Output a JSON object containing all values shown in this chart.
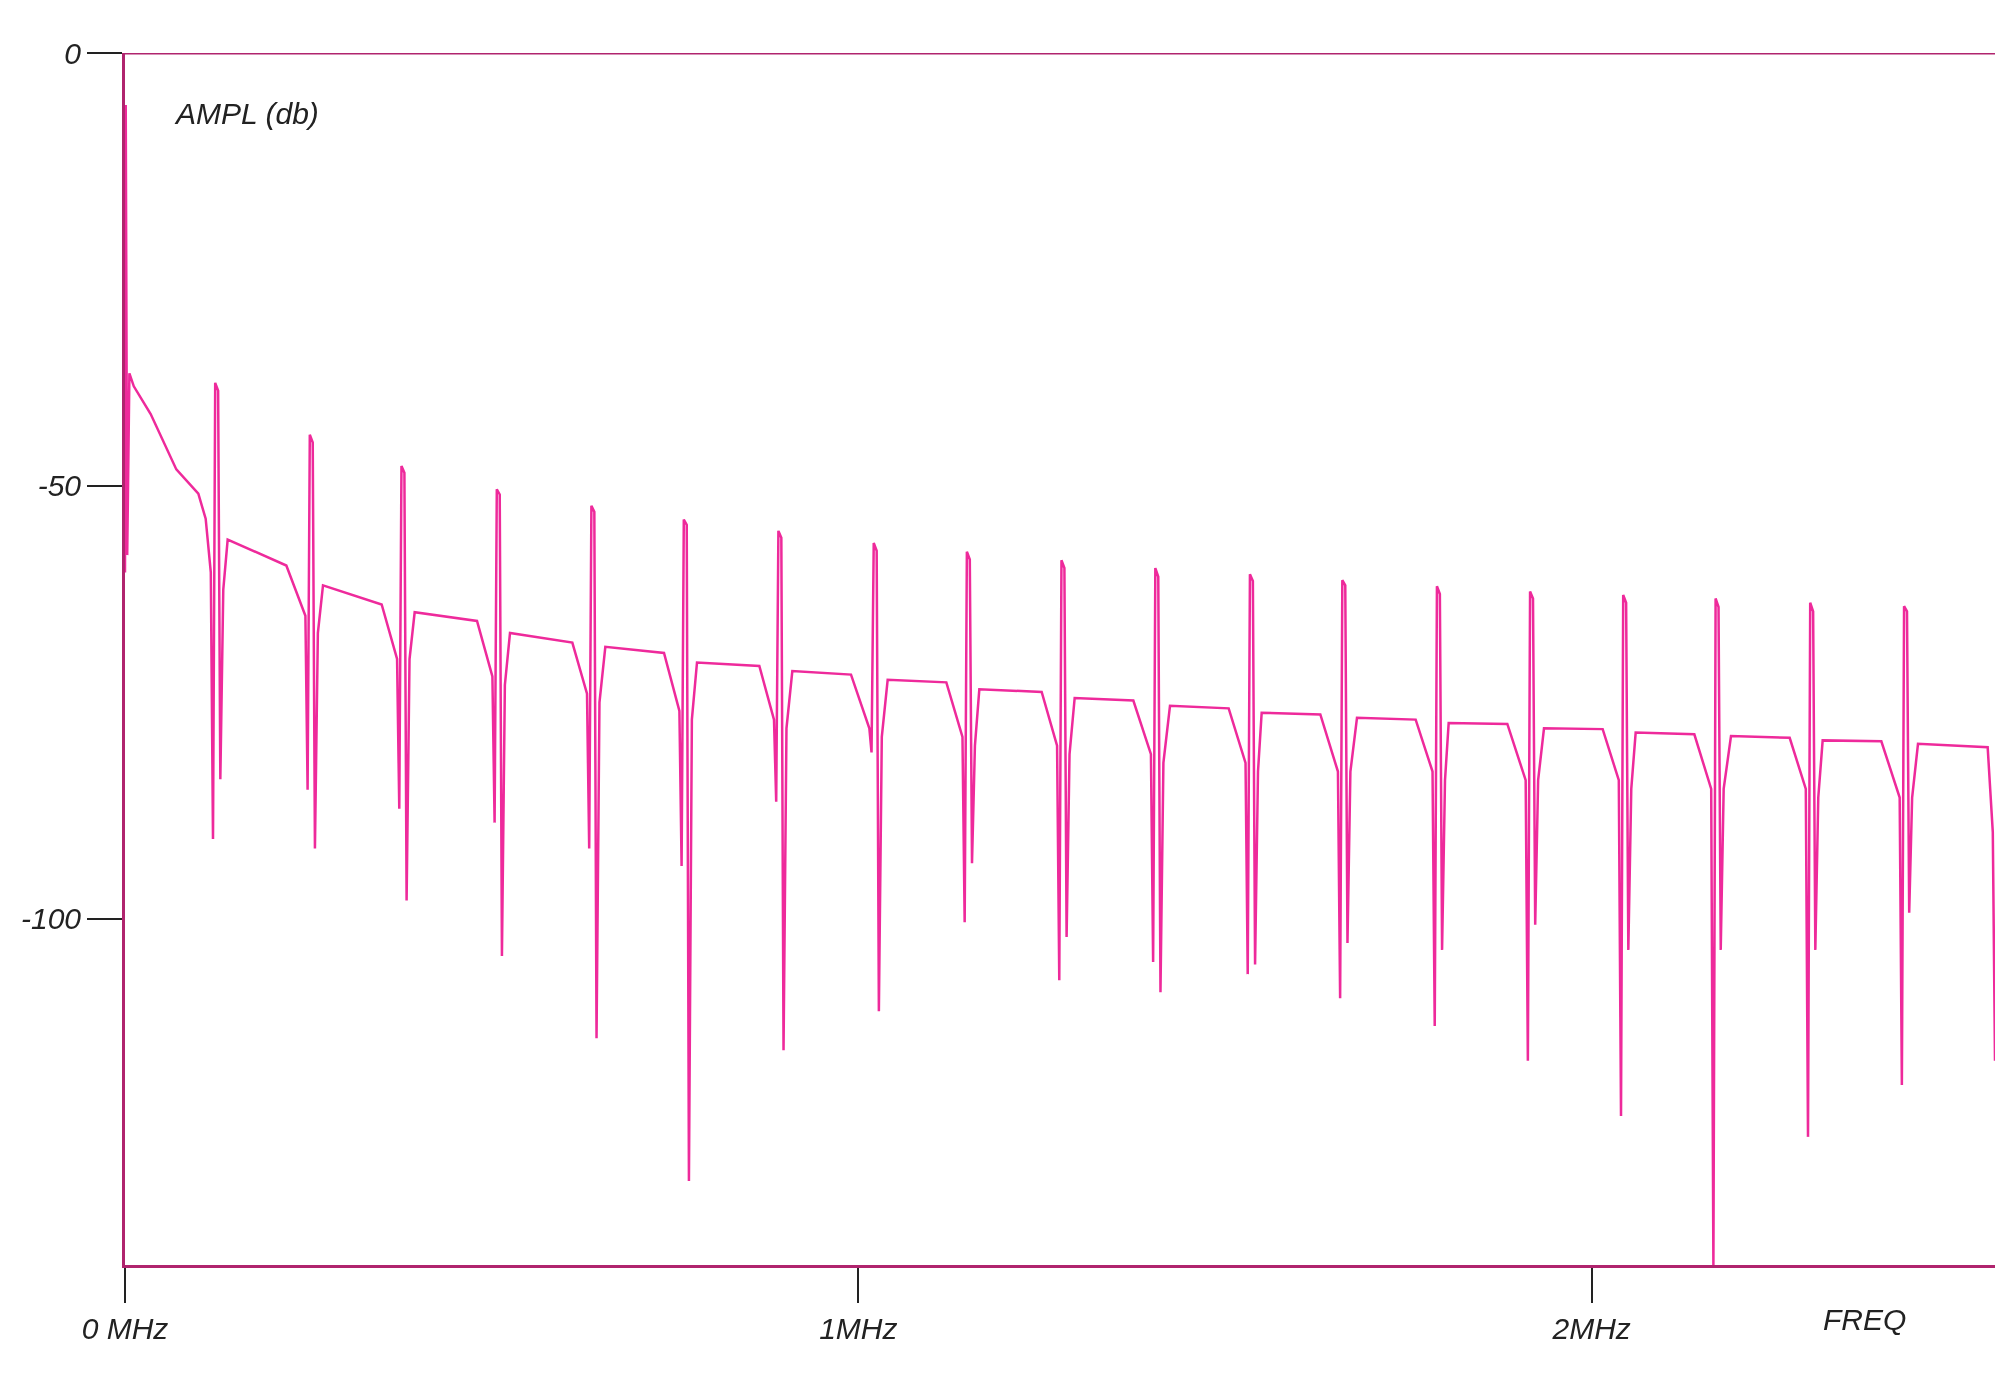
{
  "chart_data": {
    "type": "line",
    "xlabel": "FREQ",
    "ylabel": "AMPL (db)",
    "xlim": [
      0,
      2.55
    ],
    "xticks": [
      {
        "value": 0,
        "label": "0 MHz"
      },
      {
        "value": 1,
        "label": "1MHz"
      },
      {
        "value": 2,
        "label": "2MHz"
      }
    ],
    "ylim": [
      -140,
      0
    ],
    "yticks": [
      0,
      -50,
      -100
    ],
    "grid": false,
    "line_style": "solid",
    "series": [
      {
        "color": "#ee2a9b",
        "x": [
          0,
          0.001,
          0.003,
          0.006,
          0.012,
          0.035,
          0.07,
          0.1,
          0.11,
          0.117,
          0.12,
          0.123,
          0.127,
          0.13,
          0.134,
          0.14,
          0.22,
          0.246,
          0.249,
          0.252,
          0.256,
          0.259,
          0.263,
          0.27,
          0.35,
          0.371,
          0.374,
          0.377,
          0.381,
          0.384,
          0.388,
          0.395,
          0.48,
          0.501,
          0.504,
          0.507,
          0.511,
          0.514,
          0.518,
          0.525,
          0.61,
          0.63,
          0.633,
          0.636,
          0.64,
          0.643,
          0.647,
          0.655,
          0.735,
          0.756,
          0.759,
          0.762,
          0.766,
          0.769,
          0.773,
          0.78,
          0.865,
          0.885,
          0.888,
          0.891,
          0.895,
          0.898,
          0.902,
          0.91,
          0.99,
          1.015,
          1.018,
          1.021,
          1.025,
          1.028,
          1.032,
          1.04,
          1.12,
          1.142,
          1.145,
          1.148,
          1.152,
          1.155,
          1.159,
          1.165,
          1.25,
          1.271,
          1.274,
          1.277,
          1.281,
          1.284,
          1.288,
          1.295,
          1.375,
          1.399,
          1.402,
          1.405,
          1.409,
          1.412,
          1.416,
          1.425,
          1.505,
          1.528,
          1.531,
          1.534,
          1.538,
          1.541,
          1.545,
          1.55,
          1.63,
          1.654,
          1.657,
          1.66,
          1.664,
          1.667,
          1.671,
          1.68,
          1.76,
          1.783,
          1.786,
          1.789,
          1.793,
          1.796,
          1.8,
          1.805,
          1.885,
          1.91,
          1.913,
          1.916,
          1.92,
          1.923,
          1.927,
          1.935,
          2.015,
          2.037,
          2.04,
          2.043,
          2.047,
          2.05,
          2.054,
          2.06,
          2.14,
          2.163,
          2.166,
          2.169,
          2.173,
          2.176,
          2.18,
          2.19,
          2.27,
          2.292,
          2.295,
          2.298,
          2.302,
          2.305,
          2.309,
          2.315,
          2.395,
          2.42,
          2.423,
          2.426,
          2.43,
          2.433,
          2.437,
          2.445,
          2.54,
          2.547,
          2.55
        ],
        "values": [
          -60,
          -6,
          -58,
          -37,
          -38.5,
          -41.7,
          -48.1,
          -50.9,
          -53.8,
          -60,
          -90.8,
          -38.1,
          -39,
          -83.9,
          -62,
          -56.2,
          -59.2,
          -65,
          -85.1,
          -44.1,
          -45,
          -91.9,
          -67,
          -61.5,
          -63.7,
          -70,
          -87.3,
          -47.7,
          -48.5,
          -97.9,
          -70,
          -64.6,
          -65.6,
          -72,
          -88.9,
          -50.4,
          -51,
          -104.3,
          -73,
          -67,
          -68.1,
          -74,
          -91.9,
          -52.3,
          -53,
          -113.8,
          -75,
          -68.6,
          -69.3,
          -76,
          -93.9,
          -53.9,
          -54.5,
          -130.3,
          -77,
          -70.4,
          -70.8,
          -77,
          -86.5,
          -55.2,
          -56,
          -115.2,
          -78,
          -71.4,
          -71.8,
          -78,
          -80.8,
          -56.6,
          -57.5,
          -110.7,
          -79,
          -72.4,
          -72.7,
          -79,
          -100.4,
          -57.6,
          -58.5,
          -93.6,
          -80,
          -73.5,
          -73.8,
          -80,
          -107.1,
          -58.6,
          -59.5,
          -102.1,
          -81,
          -74.5,
          -74.8,
          -81,
          -105,
          -59.5,
          -60.5,
          -108.5,
          -82,
          -75.4,
          -75.7,
          -82,
          -106.4,
          -60.2,
          -61,
          -105.3,
          -83,
          -76.2,
          -76.4,
          -83,
          -109.2,
          -60.9,
          -61.5,
          -102.8,
          -83,
          -76.8,
          -77,
          -83,
          -112.4,
          -61.6,
          -62.5,
          -103.6,
          -84,
          -77.4,
          -77.5,
          -84,
          -116.4,
          -62.2,
          -63,
          -100.7,
          -84,
          -78,
          -78.1,
          -84,
          -122.8,
          -62.6,
          -63.5,
          -103.6,
          -85,
          -78.5,
          -78.7,
          -85,
          -140,
          -63,
          -64,
          -103.6,
          -85,
          -78.9,
          -79.1,
          -85,
          -125.2,
          -63.5,
          -64.5,
          -103.6,
          -86,
          -79.4,
          -79.5,
          -86,
          -119.2,
          -63.9,
          -64.5,
          -99.3,
          -86,
          -79.8,
          -80.2,
          -90,
          -116.4
        ]
      }
    ]
  }
}
